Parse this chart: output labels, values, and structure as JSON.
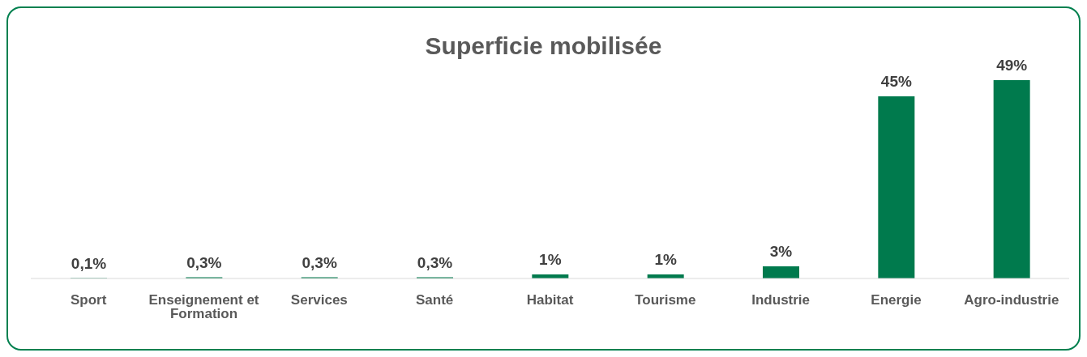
{
  "chart_data": {
    "type": "bar",
    "title": "Superficie mobilisée",
    "categories": [
      "Sport",
      "Enseignement et Formation",
      "Services",
      "Santé",
      "Habitat",
      "Tourisme",
      "Industrie",
      "Energie",
      "Agro-industrie"
    ],
    "values": [
      0.1,
      0.3,
      0.3,
      0.3,
      1,
      1,
      3,
      45,
      49
    ],
    "value_labels": [
      "0,1%",
      "0,3%",
      "0,3%",
      "0,3%",
      "1%",
      "1%",
      "3%",
      "45%",
      "49%"
    ],
    "color": "#007a4d",
    "grid": false,
    "legend": false
  }
}
